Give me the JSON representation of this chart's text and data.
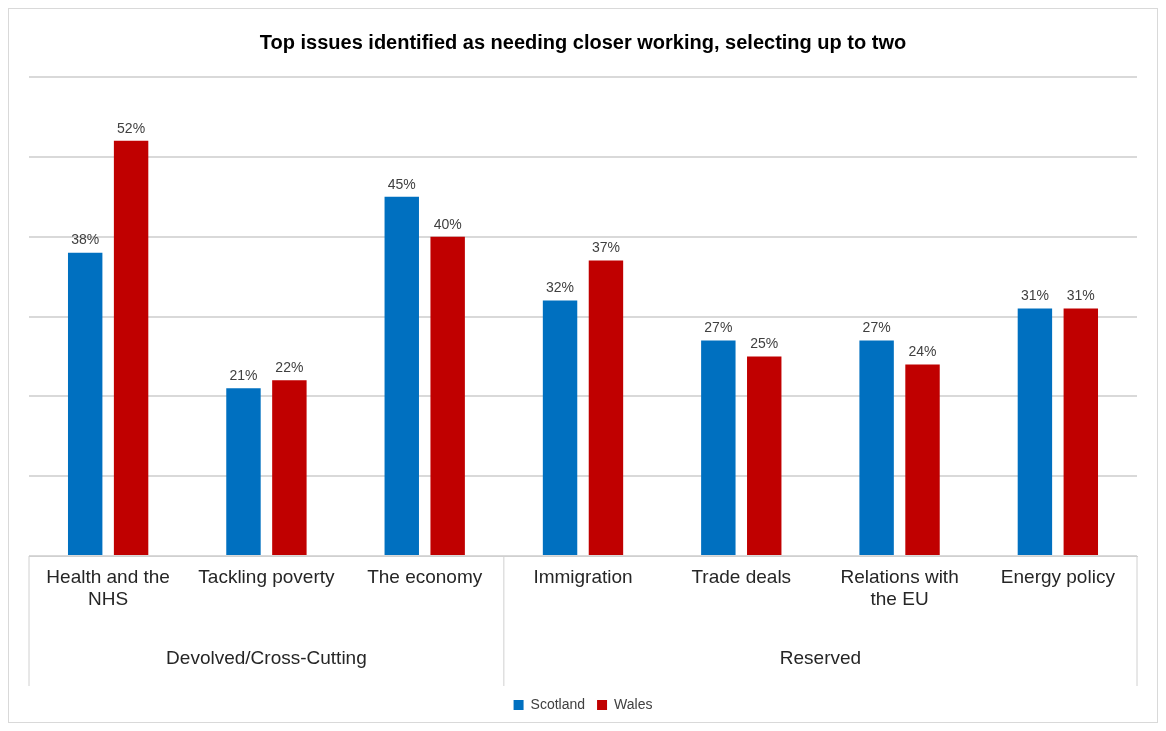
{
  "chart_data": {
    "type": "bar",
    "title": "Top issues identified as needing closer working, selecting up to two",
    "categories": [
      "Health and the NHS",
      "Tackling poverty",
      "The economy",
      "Immigration",
      "Trade deals",
      "Relations with the EU",
      "Energy policy"
    ],
    "series": [
      {
        "name": "Scotland",
        "color": "#0070c0",
        "values": [
          38,
          21,
          45,
          32,
          27,
          27,
          31
        ],
        "value_labels": [
          "38%",
          "21%",
          "45%",
          "32%",
          "27%",
          "27%",
          "31%"
        ]
      },
      {
        "name": "Wales",
        "color": "#c00000",
        "values": [
          52,
          22,
          40,
          37,
          25,
          24,
          31
        ],
        "value_labels": [
          "52%",
          "22%",
          "40%",
          "37%",
          "25%",
          "24%",
          "31%"
        ]
      }
    ],
    "tick_labels": "x",
    "grid": "y",
    "legend": "bottom",
    "annotations": [
      "Devolved/Cross-Cutting",
      "Reserved"
    ]
  }
}
